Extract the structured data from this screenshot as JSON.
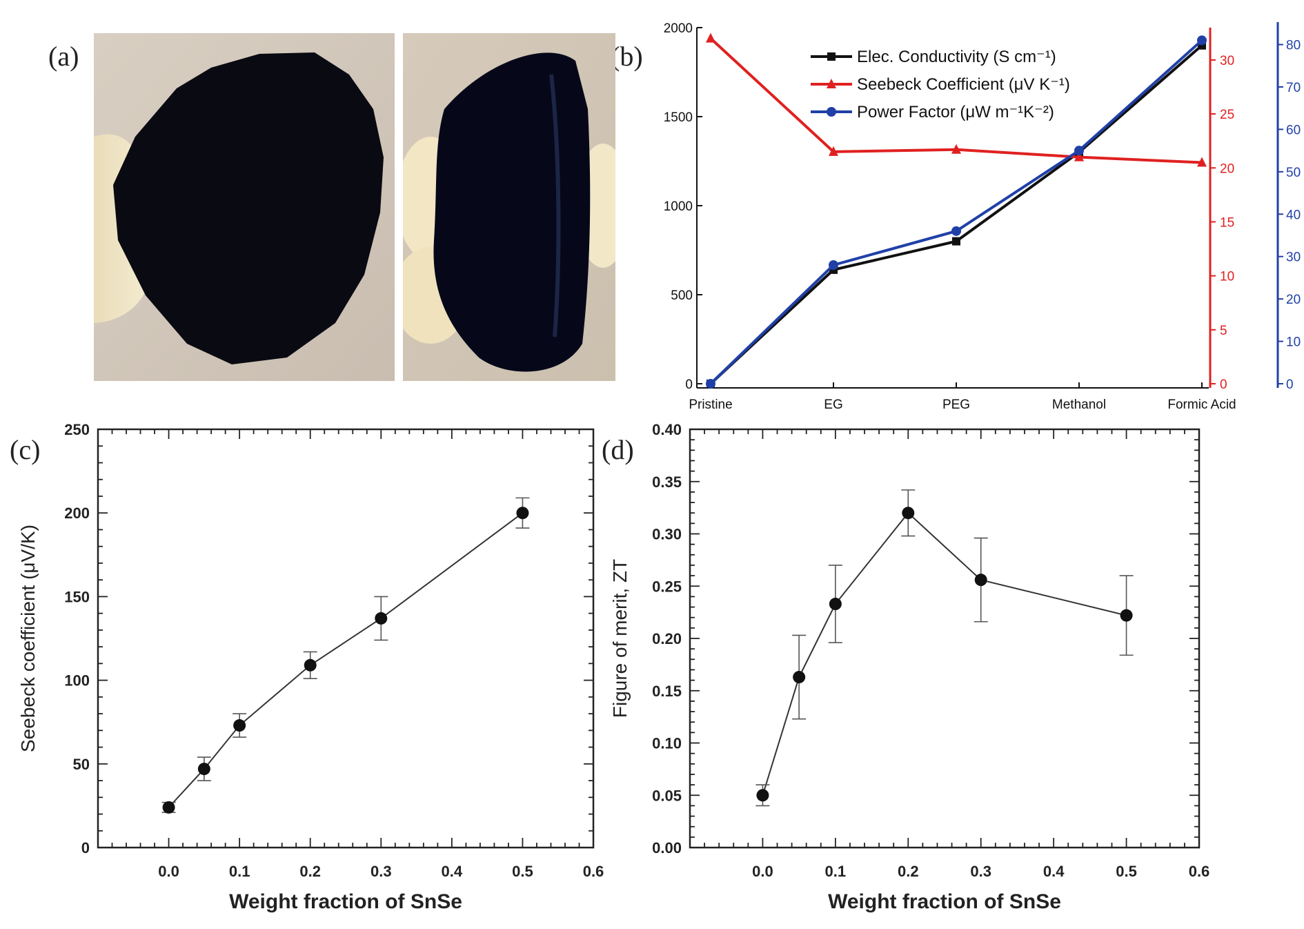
{
  "panels": {
    "a": {
      "label": "(a)"
    },
    "b": {
      "label": "(b)"
    },
    "c": {
      "label": "(c)"
    },
    "d": {
      "label": "(d)"
    }
  },
  "chart_data": [
    {
      "panel": "b",
      "type": "line",
      "categories": [
        "Pristine",
        "EG",
        "PEG",
        "Methanol",
        "Formic Acid"
      ],
      "series": [
        {
          "name": "Elec. Conductivity (S cm⁻¹)",
          "axis": "left",
          "color": "#111111",
          "marker": "square",
          "values": [
            0,
            640,
            800,
            1300,
            1900
          ]
        },
        {
          "name": "Seebeck Coefficient (μV K⁻¹)",
          "axis": "right1",
          "color": "#e02020",
          "marker": "triangle",
          "values": [
            32,
            21.5,
            21.7,
            21,
            20.5
          ]
        },
        {
          "name": "Power Factor (μW m⁻¹K⁻²)",
          "axis": "right2",
          "color": "#2040a8",
          "marker": "circle",
          "values": [
            0,
            28,
            36,
            55,
            81
          ]
        }
      ],
      "axes": {
        "left": {
          "range": [
            0,
            2000
          ],
          "ticks": [
            "0",
            "500",
            "1000",
            "1500",
            "2000"
          ],
          "tick_values": [
            0,
            500,
            1000,
            1500,
            2000
          ],
          "color": "#111111"
        },
        "right1": {
          "range": [
            0,
            33
          ],
          "ticks": [
            "0",
            "5",
            "10",
            "15",
            "20",
            "25",
            "30"
          ],
          "tick_values": [
            0,
            5,
            10,
            15,
            20,
            25,
            30
          ],
          "color": "#e02020"
        },
        "right2": {
          "range": [
            0,
            84
          ],
          "ticks": [
            "0",
            "10",
            "20",
            "30",
            "40",
            "50",
            "60",
            "70",
            "80"
          ],
          "tick_values": [
            0,
            10,
            20,
            30,
            40,
            50,
            60,
            70,
            80
          ],
          "color": "#2040a8"
        }
      },
      "legend_position": "top-center"
    },
    {
      "panel": "c",
      "type": "scatter",
      "x": [
        0.0,
        0.05,
        0.1,
        0.2,
        0.3,
        0.5
      ],
      "y": [
        24,
        47,
        73,
        109,
        137,
        200
      ],
      "yerr": [
        3,
        7,
        7,
        8,
        13,
        9
      ],
      "xlabel": "Weight fraction of SnSe",
      "ylabel": "Seebeck coefficient (μV/K)",
      "xlim": [
        -0.1,
        0.6
      ],
      "ylim": [
        0,
        250
      ],
      "xticks": [
        "0.0",
        "0.1",
        "0.2",
        "0.3",
        "0.4",
        "0.5",
        "0.6"
      ],
      "xtick_values": [
        0.0,
        0.1,
        0.2,
        0.3,
        0.4,
        0.5,
        0.6
      ],
      "yticks": [
        "0",
        "50",
        "100",
        "150",
        "200",
        "250"
      ],
      "ytick_values": [
        0,
        50,
        100,
        150,
        200,
        250
      ]
    },
    {
      "panel": "d",
      "type": "scatter",
      "x": [
        0.0,
        0.05,
        0.1,
        0.2,
        0.3,
        0.5
      ],
      "y": [
        0.05,
        0.163,
        0.233,
        0.32,
        0.256,
        0.222
      ],
      "yerr": [
        0.01,
        0.04,
        0.037,
        0.022,
        0.04,
        0.038
      ],
      "xlabel": "Weight fraction of SnSe",
      "ylabel": "Figure of merit, ZT",
      "xlim": [
        -0.1,
        0.6
      ],
      "ylim": [
        0,
        0.4
      ],
      "xticks": [
        "0.0",
        "0.1",
        "0.2",
        "0.3",
        "0.4",
        "0.5",
        "0.6"
      ],
      "xtick_values": [
        0.0,
        0.1,
        0.2,
        0.3,
        0.4,
        0.5,
        0.6
      ],
      "yticks": [
        "0.00",
        "0.05",
        "0.10",
        "0.15",
        "0.20",
        "0.25",
        "0.30",
        "0.35",
        "0.40"
      ],
      "ytick_values": [
        0,
        0.05,
        0.1,
        0.15,
        0.2,
        0.25,
        0.3,
        0.35,
        0.4
      ]
    }
  ]
}
